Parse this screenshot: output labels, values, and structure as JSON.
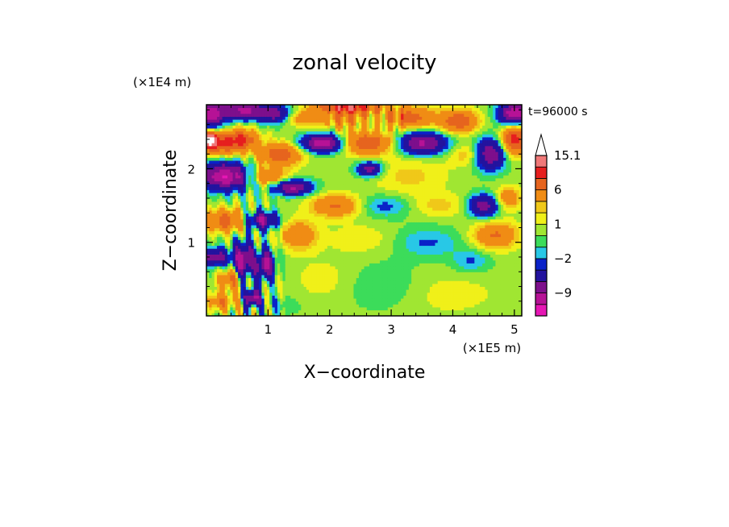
{
  "chart_data": {
    "type": "heatmap",
    "title": "zonal velocity",
    "xlabel": "X−coordinate",
    "ylabel": "Z−coordinate",
    "x_unit_label": "(×1E5 m)",
    "y_unit_label": "(×1E4 m)",
    "time_label": "t=96000 s",
    "xlim": [
      0,
      5.12
    ],
    "ylim": [
      0,
      2.87
    ],
    "x_ticks": [
      {
        "value": 1,
        "label": "1"
      },
      {
        "value": 2,
        "label": "2"
      },
      {
        "value": 3,
        "label": "3"
      },
      {
        "value": 4,
        "label": "4"
      },
      {
        "value": 5,
        "label": "5"
      }
    ],
    "y_ticks": [
      {
        "value": 1,
        "label": "1"
      },
      {
        "value": 2,
        "label": "2"
      }
    ],
    "colorbar": {
      "levels": [
        -15,
        -12,
        -9,
        -6,
        -3,
        -2,
        -1,
        0,
        1,
        2,
        3,
        6,
        9,
        12,
        15.1
      ],
      "colors": [
        "#e617b4",
        "#b61296",
        "#7d0f8c",
        "#23139e",
        "#0a22c8",
        "#28c8e6",
        "#3cdc5a",
        "#a0e632",
        "#f0f019",
        "#f0c819",
        "#f08c14",
        "#e6641e",
        "#e61e1e",
        "#f07878",
        "#f8b4b4"
      ],
      "extend_top_color": "#ffffff",
      "labels": [
        {
          "value": 15.1,
          "label": "15.1"
        },
        {
          "value": 6,
          "label": "6"
        },
        {
          "value": 1,
          "label": "1"
        },
        {
          "value": -2,
          "label": "−2"
        },
        {
          "value": -9,
          "label": "−9"
        }
      ]
    },
    "field_blobs": [
      {
        "x": 0.05,
        "z": 2.75,
        "rx": 0.25,
        "rz": 0.18,
        "amp": -12
      },
      {
        "x": 0.6,
        "z": 2.8,
        "rx": 0.3,
        "rz": 0.12,
        "amp": -10
      },
      {
        "x": 1.1,
        "z": 2.75,
        "rx": 0.3,
        "rz": 0.12,
        "amp": -8
      },
      {
        "x": 1.5,
        "z": 2.7,
        "rx": 0.25,
        "rz": 0.1,
        "amp": 4
      },
      {
        "x": 2.2,
        "z": 2.7,
        "rx": 0.5,
        "rz": 0.15,
        "amp": 5
      },
      {
        "x": 3.3,
        "z": 2.7,
        "rx": 0.4,
        "rz": 0.15,
        "amp": 7
      },
      {
        "x": 4.1,
        "z": 2.65,
        "rx": 0.3,
        "rz": 0.15,
        "amp": 8
      },
      {
        "x": 5.0,
        "z": 2.75,
        "rx": 0.25,
        "rz": 0.15,
        "amp": -12
      },
      {
        "x": 4.6,
        "z": 2.2,
        "rx": 0.25,
        "rz": 0.2,
        "amp": -10
      },
      {
        "x": 0.2,
        "z": 2.35,
        "rx": 0.35,
        "rz": 0.15,
        "amp": 9
      },
      {
        "x": 0.05,
        "z": 2.4,
        "rx": 0.1,
        "rz": 0.1,
        "amp": 13
      },
      {
        "x": 0.6,
        "z": 2.4,
        "rx": 0.25,
        "rz": 0.15,
        "amp": 7
      },
      {
        "x": 1.2,
        "z": 2.2,
        "rx": 0.35,
        "rz": 0.15,
        "amp": 8
      },
      {
        "x": 1.9,
        "z": 2.35,
        "rx": 0.35,
        "rz": 0.12,
        "amp": -12
      },
      {
        "x": 2.6,
        "z": 2.35,
        "rx": 0.45,
        "rz": 0.15,
        "amp": 8
      },
      {
        "x": 2.65,
        "z": 2.0,
        "rx": 0.2,
        "rz": 0.1,
        "amp": -8
      },
      {
        "x": 3.5,
        "z": 2.35,
        "rx": 0.4,
        "rz": 0.15,
        "amp": -10
      },
      {
        "x": 4.3,
        "z": 2.2,
        "rx": 0.35,
        "rz": 0.15,
        "amp": 3
      },
      {
        "x": 5.0,
        "z": 2.4,
        "rx": 0.2,
        "rz": 0.2,
        "amp": 10
      },
      {
        "x": 3.3,
        "z": 1.9,
        "rx": 0.6,
        "rz": 0.3,
        "amp": 2
      },
      {
        "x": 0.3,
        "z": 1.9,
        "rx": 0.4,
        "rz": 0.18,
        "amp": -12
      },
      {
        "x": 1.0,
        "z": 1.9,
        "rx": 0.3,
        "rz": 0.12,
        "amp": 6
      },
      {
        "x": 1.4,
        "z": 1.75,
        "rx": 0.3,
        "rz": 0.1,
        "amp": -10
      },
      {
        "x": 2.1,
        "z": 1.5,
        "rx": 0.4,
        "rz": 0.15,
        "amp": 6
      },
      {
        "x": 2.9,
        "z": 1.5,
        "rx": 0.45,
        "rz": 0.15,
        "amp": -3
      },
      {
        "x": 3.8,
        "z": 1.5,
        "rx": 0.5,
        "rz": 0.15,
        "amp": 2
      },
      {
        "x": 4.5,
        "z": 1.5,
        "rx": 0.25,
        "rz": 0.15,
        "amp": -8
      },
      {
        "x": 4.9,
        "z": 1.6,
        "rx": 0.2,
        "rz": 0.15,
        "amp": 5
      },
      {
        "x": 0.3,
        "z": 1.3,
        "rx": 0.35,
        "rz": 0.15,
        "amp": 7
      },
      {
        "x": 0.9,
        "z": 1.3,
        "rx": 0.25,
        "rz": 0.12,
        "amp": -9
      },
      {
        "x": 1.5,
        "z": 1.1,
        "rx": 0.3,
        "rz": 0.2,
        "amp": 5
      },
      {
        "x": 2.5,
        "z": 1.05,
        "rx": 0.5,
        "rz": 0.2,
        "amp": 1.5
      },
      {
        "x": 3.6,
        "z": 1.0,
        "rx": 0.5,
        "rz": 0.2,
        "amp": -2.5
      },
      {
        "x": 4.7,
        "z": 1.1,
        "rx": 0.35,
        "rz": 0.18,
        "amp": 6
      },
      {
        "x": 4.3,
        "z": 0.75,
        "rx": 0.3,
        "rz": 0.15,
        "amp": -2.5
      },
      {
        "x": 0.15,
        "z": 0.8,
        "rx": 0.25,
        "rz": 0.12,
        "amp": -8
      },
      {
        "x": 0.6,
        "z": 0.75,
        "rx": 0.15,
        "rz": 0.25,
        "amp": -11
      },
      {
        "x": 0.95,
        "z": 0.7,
        "rx": 0.15,
        "rz": 0.2,
        "amp": -10
      },
      {
        "x": 0.4,
        "z": 0.5,
        "rx": 0.2,
        "rz": 0.15,
        "amp": 6
      },
      {
        "x": 0.75,
        "z": 0.25,
        "rx": 0.12,
        "rz": 0.12,
        "amp": -11
      },
      {
        "x": 0.25,
        "z": 0.2,
        "rx": 0.25,
        "rz": 0.12,
        "amp": 5
      },
      {
        "x": 1.9,
        "z": 0.5,
        "rx": 0.5,
        "rz": 0.3,
        "amp": 1.2
      },
      {
        "x": 2.9,
        "z": 0.4,
        "rx": 0.6,
        "rz": 0.3,
        "amp": -1.5
      },
      {
        "x": 3.9,
        "z": 0.3,
        "rx": 0.9,
        "rz": 0.3,
        "amp": 1.2
      },
      {
        "x": 1.2,
        "z": 0.15,
        "rx": 0.3,
        "rz": 0.12,
        "amp": -1.5
      },
      {
        "x": 2.3,
        "z": 2.85,
        "rx": 0.5,
        "rz": 0.08,
        "amp": 10
      }
    ]
  }
}
